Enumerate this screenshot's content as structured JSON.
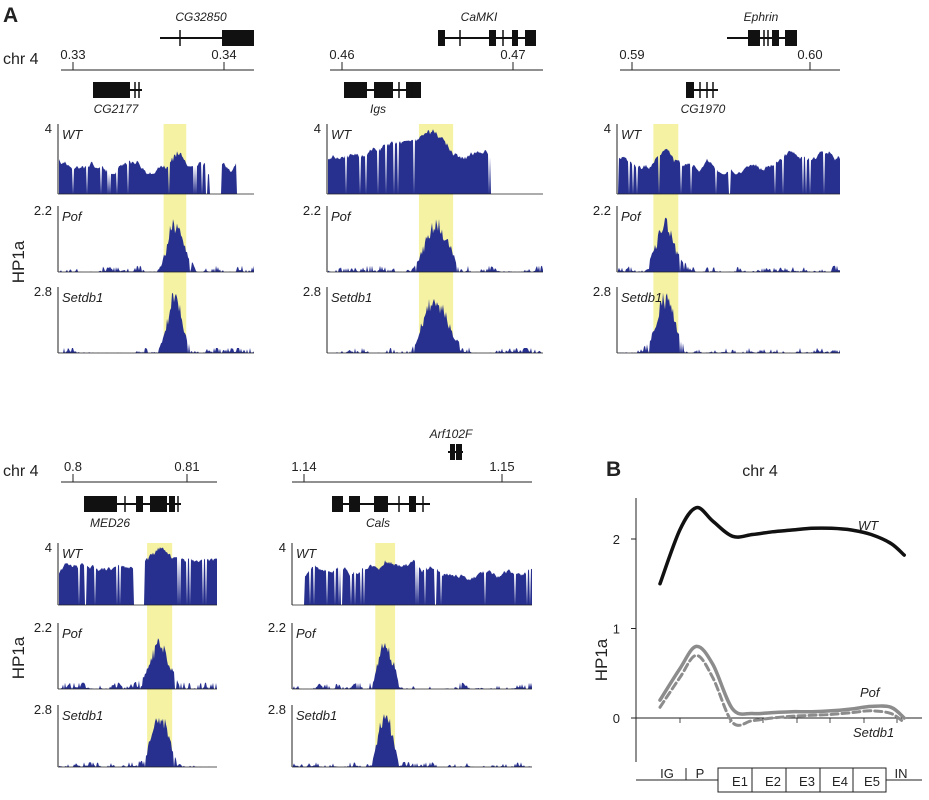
{
  "figure": {
    "panel_a_letter": "A",
    "panel_b_letter": "B",
    "ylabel": "HP1a",
    "colors": {
      "track": "#27308f",
      "highlight": "#f5f3a3",
      "gene": "#111111",
      "b_wt": "#111111",
      "b_mut": "#8c8c8c"
    }
  },
  "chart_data": [
    {
      "type": "area",
      "panel": "A",
      "chrom_label": "chr 4",
      "ticks": [
        {
          "label": "0.33",
          "pos": 0.33
        },
        {
          "label": "0.34",
          "pos": 0.34
        }
      ],
      "genes_top": [
        {
          "name": "CG32850"
        }
      ],
      "genes_bottom": [
        {
          "name": "CG2177"
        }
      ],
      "highlight": [
        0.336,
        0.3375
      ],
      "tracks": [
        {
          "name": "WT",
          "ymax": "4"
        },
        {
          "name": "Pof",
          "ymax": "2.2"
        },
        {
          "name": "Setdb1",
          "ymax": "2.8"
        }
      ]
    },
    {
      "type": "area",
      "panel": "A",
      "chrom_label": "",
      "ticks": [
        {
          "label": "0.46",
          "pos": 0.46
        },
        {
          "label": "0.47",
          "pos": 0.47
        }
      ],
      "genes_top": [
        {
          "name": "CaMKI"
        }
      ],
      "genes_bottom": [
        {
          "name": "Igs"
        }
      ],
      "highlight": [
        0.4645,
        0.4665
      ],
      "tracks": [
        {
          "name": "WT",
          "ymax": "4"
        },
        {
          "name": "Pof",
          "ymax": "2.2"
        },
        {
          "name": "Setdb1",
          "ymax": "2.8"
        }
      ]
    },
    {
      "type": "area",
      "panel": "A",
      "chrom_label": "",
      "ticks": [
        {
          "label": "0.59",
          "pos": 0.59
        },
        {
          "label": "0.60",
          "pos": 0.6
        }
      ],
      "genes_top": [
        {
          "name": "Ephrin"
        }
      ],
      "genes_bottom": [
        {
          "name": "CG1970"
        }
      ],
      "highlight": [
        0.5912,
        0.5926
      ],
      "tracks": [
        {
          "name": "WT",
          "ymax": "4"
        },
        {
          "name": "Pof",
          "ymax": "2.2"
        },
        {
          "name": "Setdb1",
          "ymax": "2.8"
        }
      ]
    },
    {
      "type": "area",
      "panel": "A",
      "chrom_label": "chr 4",
      "ticks": [
        {
          "label": "0.8",
          "pos": 0.8
        },
        {
          "label": "0.81",
          "pos": 0.81
        }
      ],
      "genes_top": [],
      "genes_bottom": [
        {
          "name": "MED26"
        }
      ],
      "highlight": [
        0.8065,
        0.8087
      ],
      "tracks": [
        {
          "name": "WT",
          "ymax": "4"
        },
        {
          "name": "Pof",
          "ymax": "2.2"
        },
        {
          "name": "Setdb1",
          "ymax": "2.8"
        }
      ]
    },
    {
      "type": "area",
      "panel": "A",
      "chrom_label": "",
      "ticks": [
        {
          "label": "1.14",
          "pos": 1.14
        },
        {
          "label": "1.15",
          "pos": 1.15
        }
      ],
      "genes_top": [
        {
          "name": "Arf102F"
        }
      ],
      "genes_bottom": [
        {
          "name": "Cals"
        }
      ],
      "highlight": [
        1.1436,
        1.1446
      ],
      "tracks": [
        {
          "name": "WT",
          "ymax": "4"
        },
        {
          "name": "Pof",
          "ymax": "2.2"
        },
        {
          "name": "Setdb1",
          "ymax": "2.8"
        }
      ]
    },
    {
      "type": "line",
      "panel": "B",
      "title": "chr 4",
      "ylabel": "HP1a",
      "ylim": [
        -0.5,
        2.5
      ],
      "yticks": [
        "0",
        "1",
        "2"
      ],
      "x_categories": [
        "IG",
        "P",
        "E1",
        "E2",
        "E3",
        "E4",
        "E5",
        "IN"
      ],
      "series": [
        {
          "name": "WT",
          "style": "solid-black",
          "x": [
            0.0,
            0.6,
            1.1,
            1.6,
            2.2,
            2.8,
            3.4,
            4.0,
            4.6,
            5.2,
            5.8,
            6.4,
            7.0,
            7.4
          ],
          "y": [
            1.5,
            2.1,
            2.35,
            2.2,
            2.03,
            2.05,
            2.08,
            2.1,
            2.12,
            2.12,
            2.1,
            2.05,
            1.95,
            1.82
          ]
        },
        {
          "name": "Pof",
          "style": "solid-gray",
          "x": [
            0.0,
            0.6,
            1.1,
            1.6,
            2.2,
            2.8,
            3.4,
            4.0,
            4.6,
            5.2,
            5.8,
            6.4,
            7.0,
            7.4
          ],
          "y": [
            0.2,
            0.55,
            0.8,
            0.6,
            0.1,
            0.05,
            0.06,
            0.07,
            0.07,
            0.08,
            0.1,
            0.13,
            0.12,
            0.0
          ]
        },
        {
          "name": "Setdb1",
          "style": "dashed-gray",
          "x": [
            0.0,
            0.6,
            1.1,
            1.6,
            2.2,
            2.8,
            3.4,
            4.0,
            4.6,
            5.2,
            5.8,
            6.4,
            7.0,
            7.4
          ],
          "y": [
            0.12,
            0.45,
            0.7,
            0.45,
            -0.05,
            -0.03,
            0.0,
            0.02,
            0.03,
            0.04,
            0.06,
            0.08,
            0.05,
            -0.05
          ]
        }
      ]
    }
  ]
}
